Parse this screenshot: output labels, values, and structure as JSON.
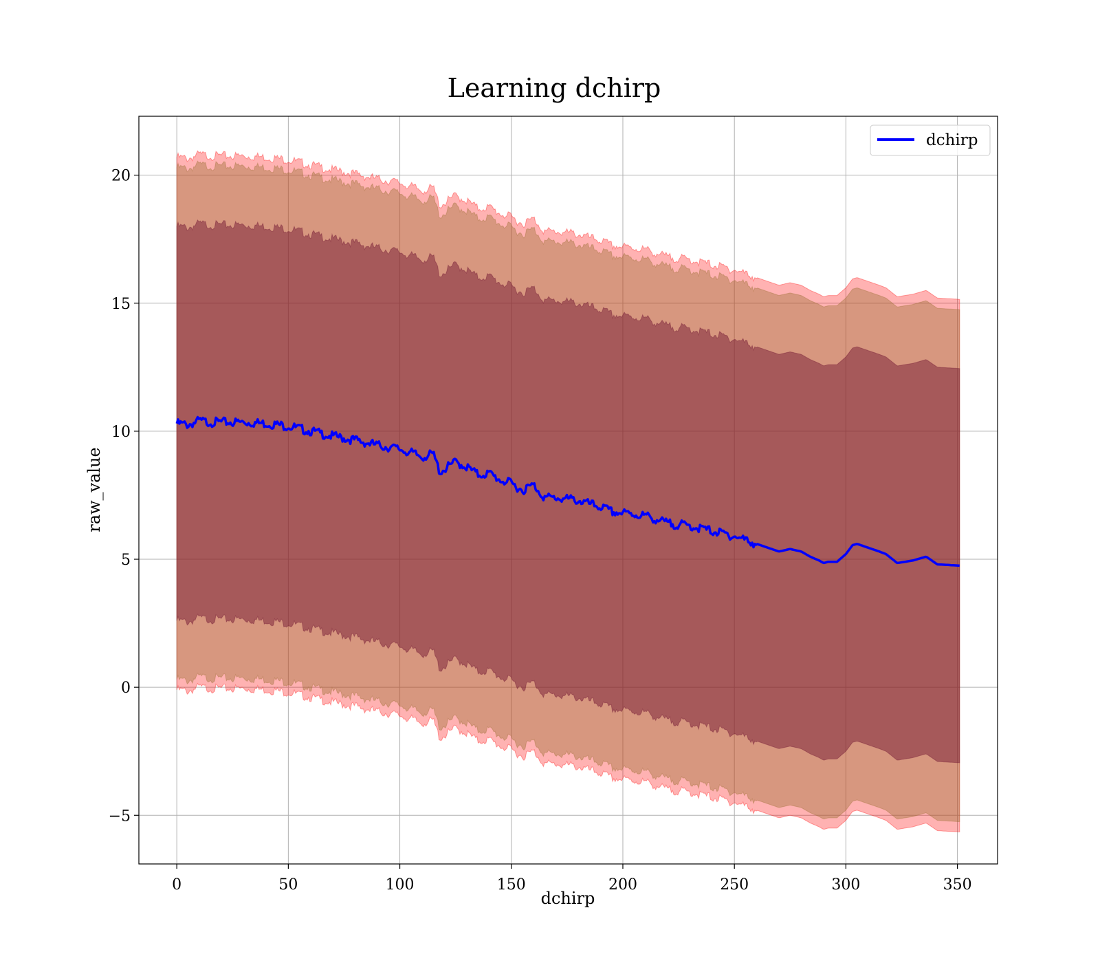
{
  "chart_data": {
    "type": "line",
    "title": "Learning dchirp",
    "xlabel": "dchirp",
    "ylabel": "raw_value",
    "xlim": [
      -17,
      368
    ],
    "ylim": [
      -6.9,
      22.3
    ],
    "xticks": [
      0,
      50,
      100,
      150,
      200,
      250,
      300,
      350
    ],
    "yticks": [
      -5,
      0,
      5,
      10,
      15,
      20
    ],
    "ytick_labels": [
      "−5",
      "0",
      "5",
      "10",
      "15",
      "20"
    ],
    "grid": true,
    "legend": {
      "position": "top-right",
      "entries": [
        "dchirp"
      ]
    },
    "colors": {
      "line": "#0000ff",
      "band_outer": "#ff0000",
      "band_middle": "#9b6e32",
      "band_inner": "#6a0d2f"
    },
    "series": [
      {
        "name": "dchirp",
        "x": [
          0,
          5,
          10,
          15,
          20,
          30,
          40,
          50,
          60,
          70,
          80,
          90,
          100,
          110,
          115,
          118,
          125,
          130,
          135,
          140,
          145,
          150,
          155,
          160,
          165,
          170,
          175,
          180,
          185,
          190,
          195,
          200,
          210,
          215,
          220,
          230,
          240,
          250,
          255,
          260,
          265,
          270,
          275,
          280,
          284,
          288,
          290,
          292,
          296,
          300,
          303,
          305,
          310,
          315,
          318,
          323,
          330,
          336,
          341,
          351
        ],
        "y": [
          10.3,
          10.25,
          10.4,
          10.35,
          10.35,
          10.35,
          10.3,
          10.2,
          10.0,
          9.8,
          9.65,
          9.45,
          9.3,
          9.0,
          9.1,
          8.4,
          8.8,
          8.6,
          8.3,
          8.35,
          8.1,
          7.95,
          7.7,
          7.9,
          7.4,
          7.4,
          7.35,
          7.3,
          7.15,
          7.05,
          6.85,
          6.8,
          6.7,
          6.55,
          6.4,
          6.3,
          6.1,
          5.9,
          5.75,
          5.6,
          5.45,
          5.3,
          5.4,
          5.3,
          5.1,
          4.95,
          4.85,
          4.9,
          4.9,
          5.2,
          5.55,
          5.6,
          5.45,
          5.3,
          5.2,
          4.85,
          4.95,
          5.1,
          4.8,
          4.75
        ]
      }
    ],
    "bands": [
      {
        "label": "outer",
        "half_width": 10.4
      },
      {
        "label": "middle",
        "half_width": 10.0
      },
      {
        "label": "inner",
        "half_width": 7.7
      }
    ]
  }
}
